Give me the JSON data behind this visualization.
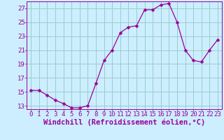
{
  "x": [
    0,
    1,
    2,
    3,
    4,
    5,
    6,
    7,
    8,
    9,
    10,
    11,
    12,
    13,
    14,
    15,
    16,
    17,
    18,
    19,
    20,
    21,
    22,
    23
  ],
  "y": [
    15.2,
    15.2,
    14.5,
    13.8,
    13.3,
    12.7,
    12.7,
    13.0,
    16.2,
    19.5,
    21.0,
    23.5,
    24.3,
    24.5,
    26.8,
    26.8,
    27.5,
    27.7,
    25.0,
    21.0,
    19.5,
    19.3,
    21.0,
    22.5
  ],
  "line_color": "#990099",
  "marker": "D",
  "marker_size": 2.5,
  "bg_color": "#cceeff",
  "grid_color": "#99cccc",
  "xlabel": "Windchill (Refroidissement éolien,°C)",
  "xlabel_fontsize": 7.5,
  "tick_fontsize": 6.5,
  "ylim": [
    12.5,
    28
  ],
  "xlim": [
    -0.5,
    23.5
  ],
  "yticks": [
    13,
    15,
    17,
    19,
    21,
    23,
    25,
    27
  ],
  "xticks": [
    0,
    1,
    2,
    3,
    4,
    5,
    6,
    7,
    8,
    9,
    10,
    11,
    12,
    13,
    14,
    15,
    16,
    17,
    18,
    19,
    20,
    21,
    22,
    23
  ]
}
